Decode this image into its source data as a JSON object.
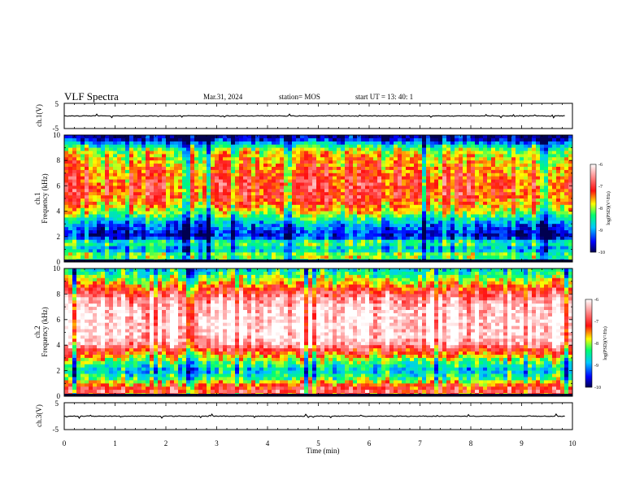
{
  "header": {
    "title": "VLF Spectra",
    "date": "Mar.31, 2024",
    "station": "station= MOS",
    "start": "start  UT =   13: 40: 1"
  },
  "chart_data": {
    "type": "heatmap",
    "xlabel": "Time  (min)",
    "xlim": [
      0,
      10
    ],
    "x_ticks": [
      "0",
      "1",
      "2",
      "3",
      "4",
      "5",
      "6",
      "7",
      "8",
      "9",
      "10"
    ],
    "panels": [
      {
        "ylabel": "ch.1(V)",
        "ylim": [
          -5,
          5
        ],
        "y_ticks": [
          "5",
          "-5"
        ],
        "trace_level": 0
      },
      {
        "ylabel": "ch.1",
        "ylabel2": "Frequency (kHz)",
        "ylim": [
          0,
          10
        ],
        "y_ticks": [
          "0",
          "2",
          "4",
          "6",
          "8",
          "10"
        ],
        "colorbar": {
          "label": "log(PSD)(V²/Hz)",
          "range": [
            -10,
            -6
          ],
          "ticks": [
            "-6",
            "-7",
            "-8",
            "-9",
            "-10"
          ]
        },
        "profile": [
          [
            0.0,
            -8.6
          ],
          [
            0.5,
            -7.9
          ],
          [
            1.0,
            -8.9
          ],
          [
            1.5,
            -8.2
          ],
          [
            2.0,
            -9.6
          ],
          [
            2.5,
            -9.3
          ],
          [
            3.0,
            -9.0
          ],
          [
            3.5,
            -8.4
          ],
          [
            4.0,
            -7.8
          ],
          [
            5.0,
            -7.2
          ],
          [
            6.0,
            -7.1
          ],
          [
            7.0,
            -7.3
          ],
          [
            8.0,
            -7.6
          ],
          [
            8.7,
            -7.9
          ],
          [
            9.2,
            -8.6
          ],
          [
            9.6,
            -9.5
          ],
          [
            10.0,
            -9.9
          ]
        ]
      },
      {
        "ylabel": "ch.2",
        "ylabel2": "Frequency (kHz)",
        "ylim": [
          0,
          10
        ],
        "y_ticks": [
          "0",
          "2",
          "4",
          "6",
          "8",
          "10"
        ],
        "colorbar": {
          "label": "log(PSD)(V²/Hz)",
          "range": [
            -10,
            -6
          ],
          "ticks": [
            "-6",
            "-7",
            "-8",
            "-9",
            "-10"
          ]
        },
        "profile": [
          [
            0.0,
            -7.6
          ],
          [
            0.4,
            -6.8
          ],
          [
            0.9,
            -7.4
          ],
          [
            1.3,
            -8.2
          ],
          [
            2.0,
            -8.8
          ],
          [
            2.6,
            -8.3
          ],
          [
            3.1,
            -7.7
          ],
          [
            3.7,
            -6.9
          ],
          [
            4.2,
            -6.3
          ],
          [
            5.0,
            -6.1
          ],
          [
            6.0,
            -6.1
          ],
          [
            7.0,
            -6.2
          ],
          [
            7.7,
            -6.6
          ],
          [
            8.3,
            -7.1
          ],
          [
            8.8,
            -7.6
          ],
          [
            9.3,
            -8.1
          ],
          [
            9.7,
            -8.5
          ],
          [
            10.0,
            -8.7
          ]
        ]
      },
      {
        "ylabel": "ch.3(V)",
        "ylim": [
          -5,
          5
        ],
        "y_ticks": [
          "5",
          "-5"
        ],
        "trace_level": 0
      }
    ]
  }
}
